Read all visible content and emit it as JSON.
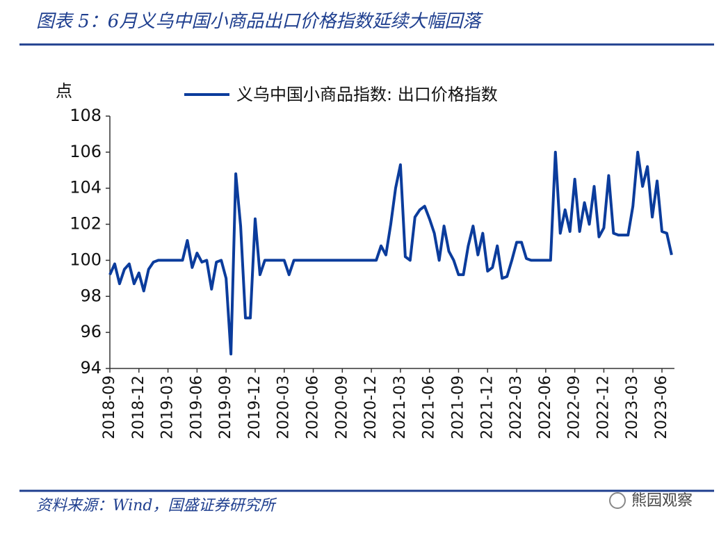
{
  "header": {
    "title": "图表 5：6月义乌中国小商品出口价格指数延续大幅回落"
  },
  "chart_data": {
    "type": "line",
    "y_label": "点",
    "categories": [
      "2018-09",
      null,
      null,
      null,
      null,
      null,
      "2018-12",
      null,
      null,
      null,
      null,
      null,
      "2019-03",
      null,
      null,
      null,
      null,
      null,
      "2019-06",
      null,
      null,
      null,
      null,
      null,
      "2019-09",
      null,
      null,
      null,
      null,
      null,
      "2019-12",
      null,
      null,
      null,
      null,
      null,
      "2020-03",
      null,
      null,
      null,
      null,
      null,
      "2020-06",
      null,
      null,
      null,
      null,
      null,
      "2020-09",
      null,
      null,
      null,
      null,
      null,
      "2020-12",
      null,
      null,
      null,
      null,
      null,
      "2021-03",
      null,
      null,
      null,
      null,
      null,
      "2021-06",
      null,
      null,
      null,
      null,
      null,
      "2021-09",
      null,
      null,
      null,
      null,
      null,
      "2021-12",
      null,
      null,
      null,
      null,
      null,
      "2022-03",
      null,
      null,
      null,
      null,
      null,
      "2022-06",
      null,
      null,
      null,
      null,
      null,
      "2022-09",
      null,
      null,
      null,
      null,
      null,
      "2022-12",
      null,
      null,
      null,
      null,
      null,
      "2023-03",
      null,
      null,
      null,
      null,
      null,
      "2023-06",
      null,
      null
    ],
    "series": [
      {
        "name": "义乌中国小商品指数: 出口价格指数",
        "color": "#0b3c9c",
        "values": [
          99.2,
          99.8,
          98.7,
          99.5,
          99.8,
          98.7,
          99.3,
          98.3,
          99.5,
          99.9,
          100,
          100,
          100,
          100,
          100,
          100,
          101.1,
          99.6,
          100.4,
          99.9,
          100,
          98.4,
          99.9,
          100,
          99.0,
          94.8,
          104.8,
          101.9,
          96.8,
          96.8,
          102.3,
          99.2,
          100,
          100,
          100,
          100,
          100,
          99.2,
          100,
          100,
          100,
          100,
          100,
          100,
          100,
          100,
          100,
          100,
          100,
          100,
          100,
          100,
          100,
          100,
          100,
          100,
          100.8,
          100.3,
          102,
          104,
          105.3,
          100.2,
          100,
          102.4,
          102.8,
          103,
          102.3,
          101.5,
          100,
          101.9,
          100.5,
          100,
          99.2,
          99.2,
          100.8,
          101.9,
          100.3,
          101.5,
          99.4,
          99.6,
          100.8,
          99.0,
          99.1,
          100,
          101,
          101,
          100.1,
          100,
          100,
          100,
          100,
          100,
          106,
          101.5,
          102.8,
          101.6,
          104.5,
          101.6,
          103.2,
          102,
          104.1,
          101.3,
          101.8,
          104.7,
          101.5,
          101.4,
          101.4,
          101.4,
          103,
          106,
          104.1,
          105.2,
          102.4,
          104.4,
          101.6,
          101.5,
          100.3
        ]
      }
    ],
    "ylim": [
      94,
      108
    ],
    "yticks": [
      94,
      96,
      98,
      100,
      102,
      104,
      106,
      108
    ],
    "grid": false
  },
  "footer": {
    "source": "资料来源：Wind，国盛证券研究所",
    "watermark": "熊园观察"
  }
}
